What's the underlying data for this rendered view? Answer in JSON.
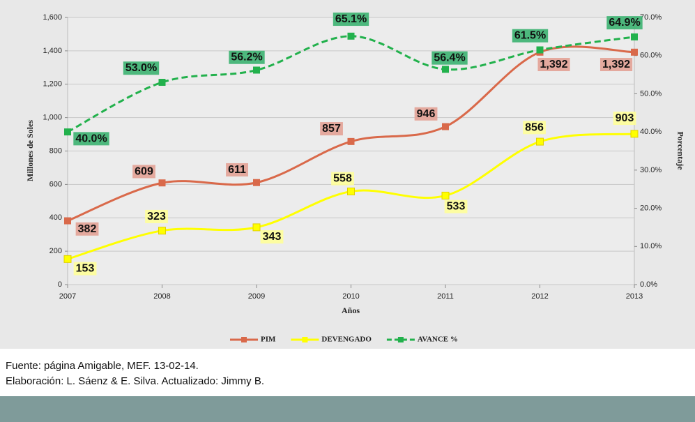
{
  "chart_data": {
    "type": "line",
    "xlabel": "Años",
    "ylabel": "Millones de Soles",
    "y2label": "Porcentaje",
    "categories": [
      "2007",
      "2008",
      "2009",
      "2010",
      "2011",
      "2012",
      "2013"
    ],
    "series": [
      {
        "name": "PIM",
        "color": "#d9694a",
        "values": [
          382,
          609,
          611,
          857,
          946,
          1392,
          1392
        ],
        "value_labels": [
          "382",
          "609",
          "611",
          "857",
          "946",
          "1,392",
          "1,392"
        ],
        "label_color": "#e3a296"
      },
      {
        "name": "DEVENGADO",
        "color": "#ffff00",
        "values": [
          153,
          323,
          343,
          558,
          533,
          856,
          903
        ],
        "label_color": "#ffff99"
      },
      {
        "name": "AVANCE %",
        "color": "#22b14c",
        "axis": "y2",
        "dashed": true,
        "values": [
          40.0,
          53.0,
          56.2,
          65.1,
          56.4,
          61.5,
          64.9
        ],
        "value_labels": [
          "40.0%",
          "53.0%",
          "56.2%",
          "65.1%",
          "56.4%",
          "61.5%",
          "64.9%"
        ],
        "label_color": "#3cb371"
      }
    ],
    "ylim": [
      0,
      1600
    ],
    "yticks": [
      0,
      200,
      400,
      600,
      800,
      {
        "value": 1000,
        "label": "1,000"
      },
      {
        "value": 1200,
        "label": "1,200"
      },
      {
        "value": 1400,
        "label": "1,400"
      },
      {
        "value": 1600,
        "label": "1,600"
      }
    ],
    "y2lim": [
      0,
      70
    ],
    "y2ticks": [
      {
        "value": 0,
        "label": "0.0%"
      },
      {
        "value": 10,
        "label": "10.0%"
      },
      {
        "value": 20,
        "label": "20.0%"
      },
      {
        "value": 30,
        "label": "30.0%"
      },
      {
        "value": 40,
        "label": "40.0%"
      },
      {
        "value": 50,
        "label": "50.0%"
      },
      {
        "value": 60,
        "label": "60.0%"
      },
      {
        "value": 70,
        "label": "70.0%"
      }
    ],
    "grid": true,
    "legend": "bottom"
  },
  "footer": {
    "lines": [
      "Fuente: página Amigable, MEF. 13-02-14.",
      "Elaboración: L. Sáenz & E. Silva. Actualizado: Jimmy B."
    ]
  }
}
